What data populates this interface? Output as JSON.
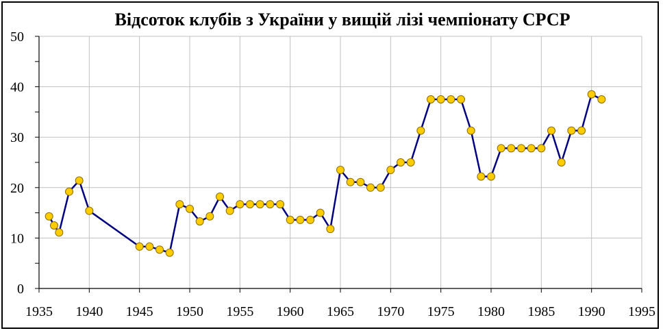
{
  "chart_data": {
    "type": "line",
    "title": "Відсоток клубів з України у вищій лізі чемпіонату СРСР",
    "xlabel": "",
    "ylabel": "",
    "xlim": [
      1935,
      1995
    ],
    "ylim": [
      0,
      50
    ],
    "xticks": [
      1935,
      1940,
      1945,
      1950,
      1955,
      1960,
      1965,
      1970,
      1975,
      1980,
      1985,
      1990,
      1995
    ],
    "yticks": [
      0,
      10,
      20,
      30,
      40,
      50
    ],
    "grid": true,
    "legend": "none",
    "series": [
      {
        "color": "#000080",
        "marker_color": "#FFCC00",
        "points": [
          [
            1936,
            14.3
          ],
          [
            1936.5,
            12.5
          ],
          [
            1937,
            11.1
          ],
          [
            1938,
            19.2
          ],
          [
            1939,
            21.4
          ],
          [
            1940,
            15.4
          ],
          [
            1945,
            8.3
          ],
          [
            1946,
            8.3
          ],
          [
            1947,
            7.7
          ],
          [
            1948,
            7.1
          ],
          [
            1949,
            16.7
          ],
          [
            1950,
            15.8
          ],
          [
            1951,
            13.3
          ],
          [
            1952,
            14.3
          ],
          [
            1953,
            18.2
          ],
          [
            1954,
            15.4
          ],
          [
            1955,
            16.7
          ],
          [
            1956,
            16.7
          ],
          [
            1957,
            16.7
          ],
          [
            1958,
            16.7
          ],
          [
            1959,
            16.7
          ],
          [
            1960,
            13.6
          ],
          [
            1961,
            13.6
          ],
          [
            1962,
            13.6
          ],
          [
            1963,
            15.0
          ],
          [
            1964,
            11.8
          ],
          [
            1965,
            23.5
          ],
          [
            1966,
            21.1
          ],
          [
            1967,
            21.1
          ],
          [
            1968,
            20.0
          ],
          [
            1969,
            20.0
          ],
          [
            1970,
            23.5
          ],
          [
            1971,
            25.0
          ],
          [
            1972,
            25.0
          ],
          [
            1973,
            31.3
          ],
          [
            1974,
            37.5
          ],
          [
            1975,
            37.5
          ],
          [
            1976,
            37.5
          ],
          [
            1977,
            37.5
          ],
          [
            1978,
            31.3
          ],
          [
            1979,
            22.2
          ],
          [
            1980,
            22.2
          ],
          [
            1981,
            27.8
          ],
          [
            1982,
            27.8
          ],
          [
            1983,
            27.8
          ],
          [
            1984,
            27.8
          ],
          [
            1985,
            27.8
          ],
          [
            1986,
            31.3
          ],
          [
            1987,
            25.0
          ],
          [
            1988,
            31.3
          ],
          [
            1989,
            31.3
          ],
          [
            1990,
            38.5
          ],
          [
            1991,
            37.5
          ]
        ]
      }
    ]
  }
}
